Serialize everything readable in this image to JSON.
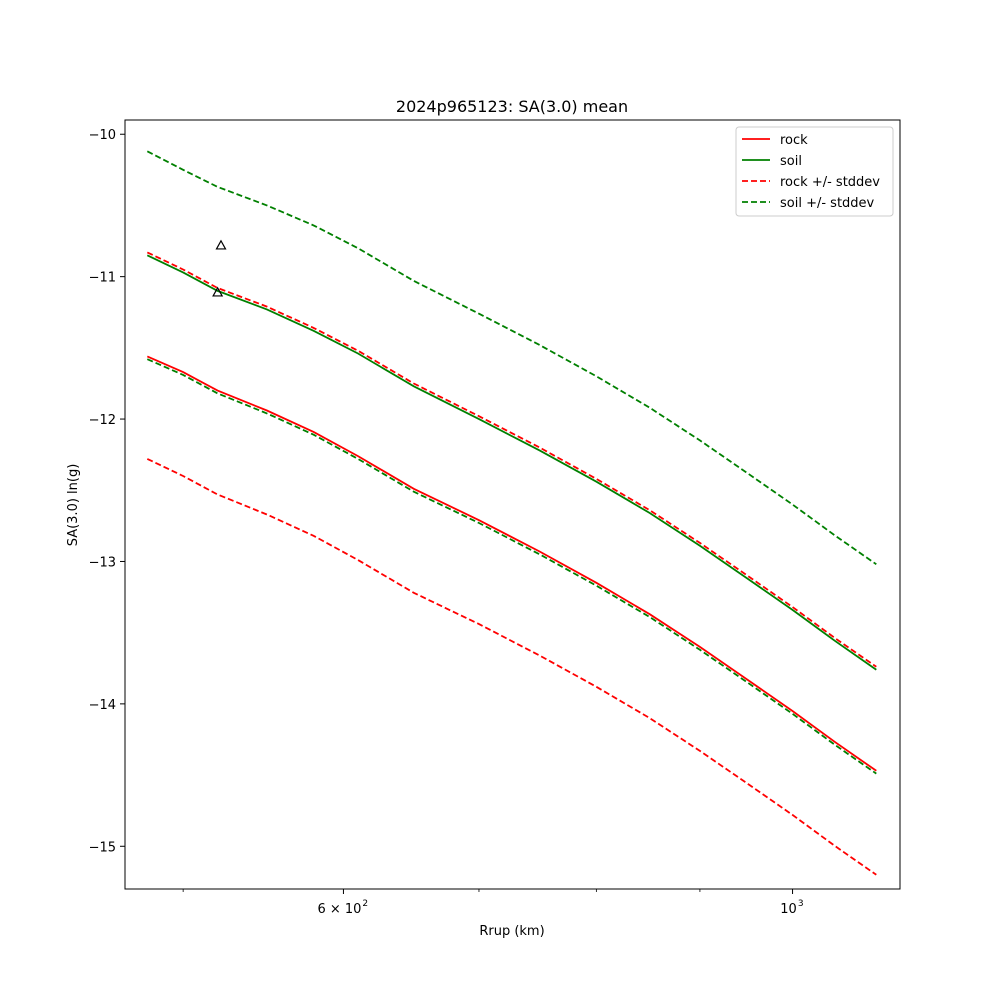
{
  "chart_data": {
    "type": "line",
    "title": "2024p965123: SA(3.0) mean",
    "xlabel": "Rrup (km)",
    "ylabel": "SA(3.0) ln(g)",
    "xscale": "log",
    "xlim": [
      468,
      1130
    ],
    "ylim": [
      -15.3,
      -9.9
    ],
    "grid": false,
    "legend_position": "top-right",
    "x_ticks": [
      {
        "value": 600,
        "label": "6 × 10",
        "exp": "2"
      },
      {
        "value": 1000,
        "label": "10",
        "exp": "3"
      }
    ],
    "x_minor_ticks": [
      500,
      700,
      800,
      900
    ],
    "y_ticks": [
      {
        "value": -10,
        "label": "−10"
      },
      {
        "value": -11,
        "label": "−11"
      },
      {
        "value": -12,
        "label": "−12"
      },
      {
        "value": -13,
        "label": "−13"
      },
      {
        "value": -14,
        "label": "−14"
      },
      {
        "value": -15,
        "label": "−15"
      }
    ],
    "x": [
      480,
      500,
      520,
      550,
      580,
      610,
      650,
      700,
      750,
      800,
      850,
      900,
      950,
      1000,
      1050,
      1100
    ],
    "series": [
      {
        "name": "rock",
        "style": "solid",
        "color": "#ff0000",
        "values": [
          -11.56,
          -11.67,
          -11.8,
          -11.94,
          -12.09,
          -12.26,
          -12.49,
          -12.71,
          -12.93,
          -13.15,
          -13.37,
          -13.6,
          -13.83,
          -14.05,
          -14.27,
          -14.47
        ]
      },
      {
        "name": "soil",
        "style": "solid",
        "color": "#008000",
        "values": [
          -10.85,
          -10.97,
          -11.1,
          -11.23,
          -11.38,
          -11.54,
          -11.77,
          -12.0,
          -12.22,
          -12.44,
          -12.66,
          -12.89,
          -13.12,
          -13.34,
          -13.56,
          -13.76
        ]
      },
      {
        "name": "rock +/- stddev",
        "style": "dashed",
        "color": "#ff0000",
        "values": [
          -10.83,
          -10.95,
          -11.08,
          -11.21,
          -11.36,
          -11.52,
          -11.75,
          -11.98,
          -12.2,
          -12.42,
          -12.64,
          -12.87,
          -13.1,
          -13.32,
          -13.54,
          -13.74
        ]
      },
      {
        "name": "",
        "style": "dashed",
        "color": "#ff0000",
        "values": [
          -12.28,
          -12.4,
          -12.53,
          -12.67,
          -12.82,
          -12.99,
          -13.22,
          -13.44,
          -13.66,
          -13.88,
          -14.1,
          -14.33,
          -14.56,
          -14.78,
          -15.0,
          -15.2
        ]
      },
      {
        "name": "soil +/- stddev",
        "style": "dashed",
        "color": "#008000",
        "values": [
          -10.12,
          -10.25,
          -10.37,
          -10.5,
          -10.64,
          -10.8,
          -11.03,
          -11.26,
          -11.48,
          -11.7,
          -11.92,
          -12.15,
          -12.38,
          -12.6,
          -12.82,
          -13.02
        ]
      },
      {
        "name": "",
        "style": "dashed",
        "color": "#008000",
        "values": [
          -11.58,
          -11.69,
          -11.82,
          -11.96,
          -12.11,
          -12.28,
          -12.51,
          -12.73,
          -12.95,
          -13.17,
          -13.39,
          -13.62,
          -13.85,
          -14.07,
          -14.29,
          -14.49
        ]
      }
    ],
    "observations": [
      {
        "x": 522,
        "y": -10.78
      },
      {
        "x": 520,
        "y": -11.11
      }
    ],
    "legend": [
      {
        "label": "rock",
        "style": "solid",
        "color": "#ff0000"
      },
      {
        "label": "soil",
        "style": "solid",
        "color": "#008000"
      },
      {
        "label": "rock +/- stddev",
        "style": "dashed",
        "color": "#ff0000"
      },
      {
        "label": "soil +/- stddev",
        "style": "dashed",
        "color": "#008000"
      }
    ]
  }
}
